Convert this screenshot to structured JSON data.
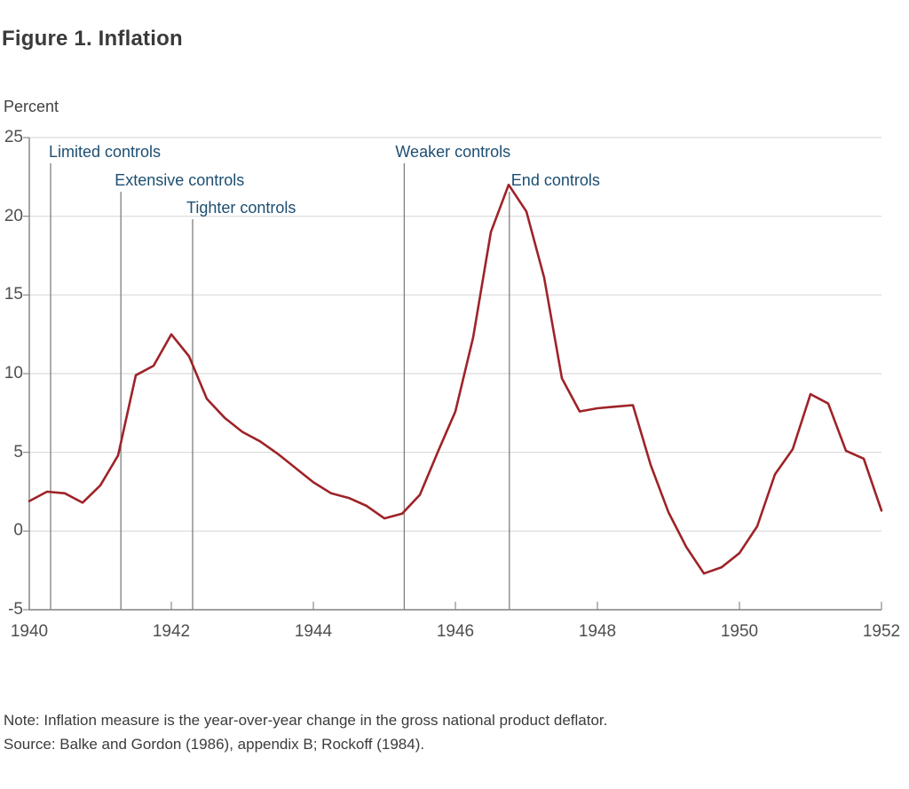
{
  "figure": {
    "title": "Figure 1. Inflation",
    "y_axis_label": "Percent",
    "note_line1": "Note: Inflation measure is the year-over-year change in the gross national product deflator.",
    "note_line2": "Source: Balke and Gordon (1986), appendix B; Rockoff (1984)."
  },
  "colors": {
    "series_line": "#9E2328",
    "event_line": "#7F7F7F",
    "event_label": "#1D4E72",
    "gridline": "#D9D9D9",
    "axis": "#808080",
    "tick_label": "#4F4F4F",
    "title_text": "#3A3A3A",
    "note_text": "#3B3B3B"
  },
  "chart_data": {
    "type": "line",
    "title": "Figure 1. Inflation",
    "xlabel": "",
    "ylabel": "Percent",
    "x_unit": "year (quarterly points)",
    "y_unit": "percent",
    "xlim": [
      1940,
      1952.05
    ],
    "ylim": [
      -5,
      25
    ],
    "grid": "horizontal",
    "legend": "none",
    "x_ticks": [
      1940,
      1942,
      1944,
      1946,
      1948,
      1950,
      1952
    ],
    "y_ticks": [
      25,
      20,
      15,
      10,
      5,
      0,
      -5
    ],
    "x": [
      1940,
      1940.25,
      1940.5,
      1940.75,
      1941,
      1941.25,
      1941.5,
      1941.75,
      1942,
      1942.25,
      1942.5,
      1942.75,
      1943,
      1943.25,
      1943.5,
      1943.75,
      1944,
      1944.25,
      1944.5,
      1944.75,
      1945,
      1945.25,
      1945.5,
      1945.75,
      1946,
      1946.25,
      1946.5,
      1946.75,
      1947,
      1947.25,
      1947.5,
      1947.75,
      1948,
      1948.25,
      1948.5,
      1948.75,
      1949,
      1949.25,
      1949.5,
      1949.75,
      1950,
      1950.25,
      1950.5,
      1950.75,
      1951,
      1951.25,
      1951.5,
      1951.75,
      1952
    ],
    "values": [
      1.9,
      2.5,
      2.4,
      1.8,
      2.9,
      4.8,
      9.9,
      10.5,
      12.5,
      11.1,
      8.4,
      7.2,
      6.3,
      5.7,
      4.9,
      4.0,
      3.1,
      2.4,
      2.1,
      1.6,
      0.8,
      1.1,
      2.3,
      5.0,
      7.6,
      12.3,
      19.0,
      22.0,
      20.3,
      16.1,
      9.7,
      7.6,
      7.8,
      7.9,
      8.0,
      4.2,
      1.2,
      -1.0,
      -2.7,
      -2.3,
      -1.4,
      0.3,
      3.6,
      5.2,
      8.7,
      8.1,
      5.1,
      4.6,
      1.3
    ],
    "annotations": [
      {
        "label": "Limited controls",
        "x": 1940.3,
        "row": 0,
        "label_dx": -2
      },
      {
        "label": "Extensive controls",
        "x": 1941.29,
        "row": 1,
        "label_dx": -7
      },
      {
        "label": "Tighter controls",
        "x": 1942.3,
        "row": 2,
        "label_dx": -7
      },
      {
        "label": "Weaker controls",
        "x": 1945.28,
        "row": 0,
        "label_dx": -10
      },
      {
        "label": "End controls",
        "x": 1946.76,
        "row": 1,
        "label_dx": 2
      }
    ]
  }
}
